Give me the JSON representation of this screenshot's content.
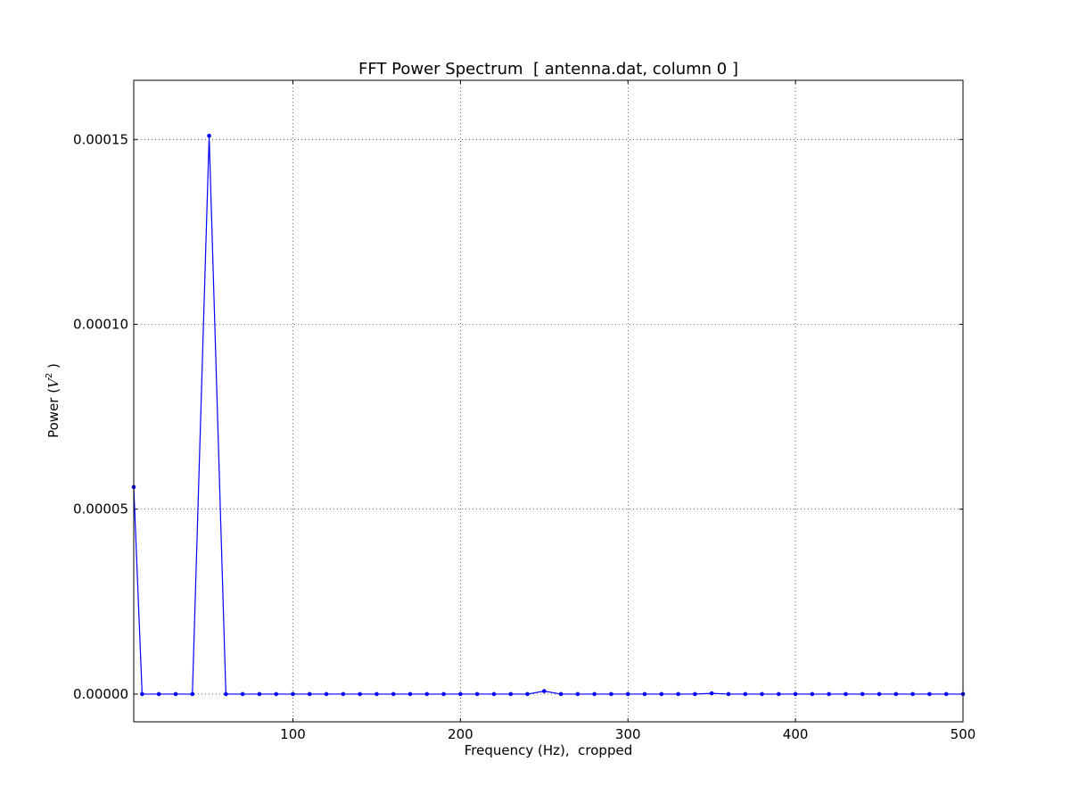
{
  "chart_data": {
    "type": "line",
    "title": "FFT Power Spectrum  [ antenna.dat, column 0 ]",
    "xlabel": "Frequency (Hz),  cropped",
    "ylabel_prefix": "Power (",
    "ylabel_math_base": "V",
    "ylabel_math_exp": "2",
    "ylabel_suffix": " )",
    "xlim": [
      5,
      500
    ],
    "ylim": [
      -7.5e-06,
      0.000166
    ],
    "x_ticks": [
      100,
      200,
      300,
      400,
      500
    ],
    "x_tick_labels": [
      "100",
      "200",
      "300",
      "400",
      "500"
    ],
    "y_ticks": [
      0,
      5e-05,
      0.0001,
      0.00015
    ],
    "y_tick_labels": [
      "0.00000",
      "0.00005",
      "0.00010",
      "0.00015"
    ],
    "grid": true,
    "grid_style": "dotted",
    "series_color": "#0000ff",
    "series": [
      {
        "x": [
          5,
          10,
          20,
          30,
          40,
          50,
          60,
          70,
          80,
          90,
          100,
          110,
          120,
          130,
          140,
          150,
          160,
          170,
          180,
          190,
          200,
          210,
          220,
          230,
          240,
          250,
          260,
          270,
          280,
          290,
          300,
          310,
          320,
          330,
          340,
          350,
          360,
          370,
          380,
          390,
          400,
          410,
          420,
          430,
          440,
          450,
          460,
          470,
          480,
          490,
          500
        ],
        "values": [
          5.6e-05,
          0,
          0,
          0,
          0,
          0.000151,
          0,
          0,
          0,
          0,
          0,
          0,
          0,
          0,
          0,
          0,
          0,
          0,
          0,
          0,
          0,
          0,
          0,
          0,
          0,
          8e-07,
          0,
          0,
          0,
          0,
          0,
          0,
          0,
          0,
          0,
          2e-07,
          0,
          0,
          0,
          0,
          0,
          0,
          0,
          0,
          0,
          0,
          0,
          0,
          0,
          0,
          0
        ]
      }
    ]
  }
}
